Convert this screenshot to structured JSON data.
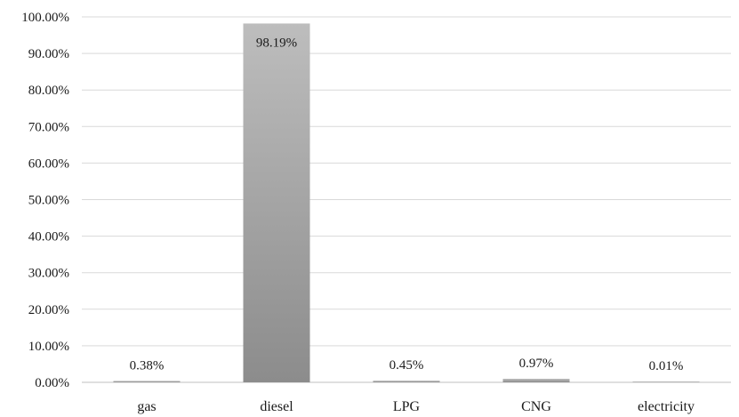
{
  "chart_data": {
    "type": "bar",
    "title": "",
    "xlabel": "",
    "ylabel": "",
    "categories": [
      "gas",
      "diesel",
      "LPG",
      "CNG",
      "electricity"
    ],
    "values": [
      0.38,
      98.19,
      0.45,
      0.97,
      0.01
    ],
    "data_labels": [
      "0.38%",
      "98.19%",
      "0.45%",
      "0.97%",
      "0.01%"
    ],
    "ylim": [
      0,
      100
    ],
    "y_ticks": [
      0,
      10,
      20,
      30,
      40,
      50,
      60,
      70,
      80,
      90,
      100
    ],
    "y_tick_labels": [
      "0.00%",
      "10.00%",
      "20.00%",
      "30.00%",
      "40.00%",
      "50.00%",
      "60.00%",
      "70.00%",
      "80.00%",
      "90.00%",
      "100.00%"
    ],
    "grid": true,
    "legend": "none",
    "bar_color_top": "#bdbdbd",
    "bar_color_bottom": "#8c8c8c"
  }
}
